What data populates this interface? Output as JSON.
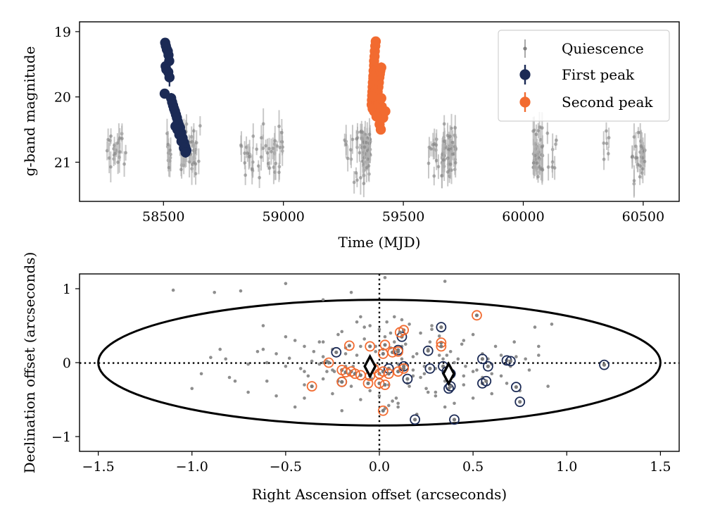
{
  "chart_data": [
    {
      "type": "scatter",
      "title": "",
      "xlabel": "Time (MJD)",
      "ylabel": "g-band magnitude",
      "xlim": [
        58150,
        60650
      ],
      "ylim": [
        21.6,
        18.85
      ],
      "y_inverted": true,
      "x_ticks": [
        58500,
        59000,
        59500,
        60000,
        60500
      ],
      "x_tick_labels": [
        "58500",
        "59000",
        "59500",
        "60000",
        "60500"
      ],
      "y_ticks": [
        19,
        20,
        21
      ],
      "y_tick_labels": [
        "19",
        "20",
        "21"
      ],
      "legend": {
        "position": "top-right",
        "entries": [
          "Quiescence",
          "First peak",
          "Second peak"
        ]
      },
      "series": [
        {
          "name": "Quiescence",
          "color": "#808080",
          "marker": "small dot with error bar",
          "clusters": [
            {
              "center": 58300,
              "spread": 45,
              "n": 22
            },
            {
              "center": 58525,
              "spread": 12,
              "n": 10
            },
            {
              "center": 58610,
              "spread": 45,
              "n": 40
            },
            {
              "center": 58910,
              "spread": 90,
              "n": 45
            },
            {
              "center": 59300,
              "spread": 45,
              "n": 22
            },
            {
              "center": 59345,
              "spread": 18,
              "n": 45
            },
            {
              "center": 59690,
              "spread": 30,
              "n": 55
            },
            {
              "center": 59630,
              "spread": 25,
              "n": 12
            },
            {
              "center": 60060,
              "spread": 22,
              "n": 40
            },
            {
              "center": 60120,
              "spread": 30,
              "n": 8
            },
            {
              "center": 60480,
              "spread": 28,
              "n": 30
            },
            {
              "center": 60350,
              "spread": 18,
              "n": 6
            }
          ],
          "magnitude_range": [
            20.3,
            21.4
          ]
        },
        {
          "name": "First peak",
          "color": "#1b2a55",
          "marker": "large filled circle with error bar",
          "x": [
            58507,
            58510,
            58514,
            58518,
            58521,
            58524,
            58509,
            58512,
            58520,
            58525,
            58505,
            58532,
            58536,
            58540,
            58544,
            58548,
            58552,
            58556,
            58560,
            58564,
            58569,
            58574,
            58580,
            58586,
            58590,
            58596,
            58550,
            58558,
            58566,
            58575,
            58585,
            58592
          ],
          "y": [
            19.17,
            19.22,
            19.27,
            19.3,
            19.36,
            19.45,
            19.53,
            19.58,
            19.62,
            19.7,
            19.95,
            20.02,
            20.08,
            20.13,
            20.18,
            20.22,
            20.27,
            20.32,
            20.38,
            20.43,
            20.47,
            20.55,
            20.63,
            20.7,
            20.76,
            20.82,
            20.45,
            20.5,
            20.58,
            20.68,
            20.78,
            20.85
          ]
        },
        {
          "name": "Second peak",
          "color": "#f26b30",
          "marker": "large filled circle with error bar",
          "x": [
            59385,
            59383,
            59381,
            59380,
            59378,
            59378,
            59376,
            59375,
            59373,
            59372,
            59371,
            59370,
            59369,
            59368,
            59372,
            59378,
            59382,
            59386,
            59388,
            59390,
            59393,
            59396,
            59398,
            59400,
            59402,
            59404,
            59408,
            59410,
            59413,
            59416,
            59375,
            59380,
            59385,
            59390,
            59395,
            59400,
            59405,
            59412,
            59425,
            59401,
            59406,
            59372,
            59388,
            59398,
            59408
          ],
          "y": [
            19.15,
            19.22,
            19.3,
            19.38,
            19.45,
            19.52,
            19.6,
            19.68,
            19.78,
            19.85,
            19.92,
            19.98,
            20.05,
            20.12,
            20.18,
            20.22,
            20.18,
            20.12,
            20.05,
            19.98,
            19.92,
            19.85,
            19.78,
            19.7,
            19.65,
            19.6,
            19.55,
            20.15,
            20.25,
            20.32,
            19.72,
            19.82,
            19.9,
            19.95,
            20.08,
            20.15,
            20.22,
            20.3,
            20.22,
            20.42,
            20.5,
            20.0,
            20.3,
            20.12,
            20.02
          ]
        }
      ]
    },
    {
      "type": "scatter",
      "title": "",
      "xlabel": "Right Ascension offset (arcseconds)",
      "ylabel": "Declination offset (arcseconds)",
      "xlim": [
        -1.6,
        1.6
      ],
      "ylim": [
        -1.2,
        1.2
      ],
      "x_ticks": [
        -1.5,
        -1.0,
        -0.5,
        0,
        0.5,
        1.0,
        1.5
      ],
      "x_tick_labels": [
        "−1.5",
        "−1.0",
        "−0.5",
        "0.0",
        "0.5",
        "1.0",
        "1.5"
      ],
      "y_ticks": [
        -1,
        0,
        1
      ],
      "y_tick_labels": [
        "−1",
        "0",
        "1"
      ],
      "ellipse": {
        "center": [
          0,
          0
        ],
        "semi_major_ra": 1.5,
        "semi_minor_dec": 0.85
      },
      "reference_lines": {
        "ra": 0,
        "dec": 0,
        "style": "dotted"
      },
      "centroids": [
        {
          "name": "first peak centroid",
          "ra": 0.37,
          "dec": -0.15,
          "marker": "diamond"
        },
        {
          "name": "second peak centroid",
          "ra": -0.05,
          "dec": -0.05,
          "marker": "diamond"
        }
      ],
      "series": [
        {
          "name": "Quiescence",
          "color": "#7a7a7a",
          "marker": "small dot",
          "x": [
            -1.1,
            -0.88,
            -0.74,
            -0.5,
            -0.3,
            -0.15,
            0.03,
            0.35,
            0.83,
            0.92,
            -0.85,
            -0.62,
            -0.45,
            -0.4,
            -0.3,
            -0.22,
            -0.2,
            -0.12,
            -0.08,
            -0.05,
            0.0,
            0.04,
            0.08,
            0.12,
            0.16,
            0.22,
            0.28,
            0.32,
            0.45,
            0.5,
            0.62,
            0.72,
            0.85,
            -0.55,
            -0.48,
            -0.35,
            -0.3,
            -0.25,
            -0.18,
            -0.1,
            -0.02,
            0.06,
            0.14,
            0.2,
            0.26,
            0.36,
            0.42,
            0.55,
            0.58,
            0.65,
            0.78,
            -0.82,
            -0.7,
            -0.6,
            -0.5,
            -0.42,
            -0.32,
            -0.28,
            -0.24,
            -0.16,
            -0.06,
            0.02,
            0.1,
            0.18,
            0.24,
            0.3,
            0.4,
            0.46,
            0.52,
            0.6,
            0.7,
            0.8,
            -1.0,
            -0.95,
            -0.6,
            -0.4,
            -0.3,
            -0.15,
            -0.05,
            0.05,
            0.15,
            0.25,
            0.35,
            0.45,
            0.55,
            0.68,
            -0.7,
            -0.55,
            -0.4,
            -0.25,
            -0.1,
            0.0,
            0.1,
            0.3,
            0.4,
            0.5,
            0.6,
            0.75,
            0.9,
            -0.45,
            -0.2,
            0.05,
            0.2,
            0.35,
            -0.5,
            -0.32,
            -0.18,
            -0.08,
            0.08,
            0.18,
            0.28,
            -0.3,
            -0.12,
            0.12,
            0.22,
            0.45,
            0.6,
            -0.65,
            -0.38,
            -0.02,
            0.15,
            0.26,
            0.38,
            -0.22,
            0.06,
            0.3,
            -0.1,
            0.1,
            -0.14,
            0.12,
            -0.04,
            0.02,
            0.24,
            -0.25,
            0.34,
            0.44,
            -0.36,
            -0.28,
            0.03,
            0.16,
            -0.06,
            0.08,
            0.27,
            0.5,
            0.65,
            0.73,
            0.85,
            -0.77,
            -0.62,
            0.18,
            0.32,
            -0.18,
            0.09,
            -0.9,
            -0.8,
            0.07,
            0.03,
            -0.4,
            0.2
          ],
          "y": [
            0.98,
            0.95,
            0.97,
            1.07,
            0.85,
            0.95,
            1.15,
            1.1,
            0.48,
            0.52,
            0.18,
            0.5,
            0.3,
            0.22,
            0.28,
            0.38,
            0.42,
            0.55,
            0.48,
            0.5,
            0.45,
            0.55,
            0.62,
            0.58,
            0.52,
            0.4,
            0.5,
            0.36,
            0.3,
            0.38,
            0.22,
            0.28,
            0.22,
            0.12,
            0.06,
            0.15,
            0.08,
            0.18,
            0.2,
            0.22,
            0.15,
            0.2,
            0.25,
            0.12,
            0.18,
            0.1,
            0.05,
            0.12,
            0.05,
            0.1,
            0.05,
            0.05,
            -0.02,
            0.0,
            -0.05,
            -0.08,
            -0.02,
            0.02,
            -0.12,
            -0.15,
            -0.08,
            -0.12,
            -0.02,
            -0.1,
            -0.05,
            -0.08,
            0.0,
            -0.05,
            -0.1,
            -0.02,
            -0.05,
            -0.1,
            -0.35,
            -0.15,
            -0.25,
            -0.3,
            -0.22,
            -0.32,
            -0.38,
            -0.3,
            -0.22,
            -0.35,
            -0.25,
            -0.3,
            -0.2,
            -0.28,
            -0.4,
            -0.45,
            -0.48,
            -0.42,
            -0.5,
            -0.45,
            -0.55,
            -0.45,
            -0.55,
            -0.48,
            -0.42,
            -0.38,
            -0.32,
            -0.6,
            -0.65,
            -0.58,
            -0.7,
            -0.6,
            0.35,
            0.28,
            0.12,
            0.32,
            0.28,
            0.08,
            0.45,
            0.0,
            0.1,
            0.05,
            -0.2,
            -0.18,
            -0.15,
            0.15,
            -0.18,
            0.22,
            -0.28,
            -0.4,
            0.15,
            -0.25,
            0.4,
            -0.4,
            0.62,
            -0.6,
            -0.05,
            0.22,
            -0.22,
            0.18,
            -0.15,
            -0.1,
            0.05,
            0.25,
            0.02,
            -0.12,
            0.35,
            -0.32,
            0.02,
            0.15,
            0.28,
            -0.12,
            -0.18,
            0.08,
            0.1,
            -0.25,
            0.18,
            -0.18,
            0.1,
            -0.05,
            -0.48,
            0.07,
            -0.2,
            -0.52,
            -0.62,
            -0.12,
            -0.7
          ]
        },
        {
          "name": "First peak",
          "color": "#1b2a55",
          "marker": "open circle around dot",
          "x": [
            0.33,
            0.12,
            -0.23,
            -0.2,
            0.05,
            0.13,
            0.27,
            0.34,
            0.37,
            0.38,
            0.55,
            0.58,
            0.68,
            0.7,
            0.26,
            0.1,
            0.15,
            0.36,
            0.38,
            0.55,
            0.57,
            0.73,
            0.75,
            0.19,
            0.4,
            1.2
          ],
          "y": [
            0.48,
            0.35,
            0.14,
            -0.26,
            -0.08,
            -0.05,
            -0.08,
            -0.05,
            -0.35,
            -0.32,
            0.05,
            -0.05,
            0.03,
            0.02,
            0.16,
            0.17,
            -0.22,
            -0.12,
            -0.15,
            -0.28,
            -0.25,
            -0.33,
            -0.53,
            -0.77,
            -0.77,
            -0.03
          ]
        },
        {
          "name": "Second peak",
          "color": "#f26b30",
          "marker": "open circle around dot",
          "x": [
            0.52,
            0.13,
            0.11,
            -0.16,
            0.33,
            0.33,
            -0.05,
            0.03,
            0.07,
            0.02,
            -0.27,
            -0.2,
            -0.18,
            -0.15,
            -0.13,
            -0.1,
            -0.05,
            0.0,
            0.02,
            0.05,
            0.1,
            0.13,
            -0.2,
            -0.06,
            0.0,
            0.03,
            -0.36,
            0.02,
            0.1,
            -0.03
          ],
          "y": [
            0.64,
            0.44,
            0.41,
            0.23,
            0.27,
            0.22,
            0.22,
            0.24,
            0.14,
            0.12,
            0.0,
            -0.1,
            -0.13,
            -0.12,
            -0.15,
            -0.17,
            -0.18,
            -0.15,
            -0.12,
            -0.15,
            -0.12,
            -0.08,
            -0.26,
            -0.28,
            -0.28,
            -0.3,
            -0.32,
            -0.65,
            0.15,
            -0.08
          ]
        }
      ]
    }
  ]
}
